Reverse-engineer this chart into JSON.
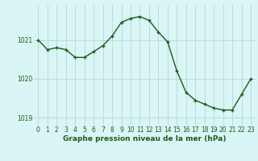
{
  "x": [
    0,
    1,
    2,
    3,
    4,
    5,
    6,
    7,
    8,
    9,
    10,
    11,
    12,
    13,
    14,
    15,
    16,
    17,
    18,
    19,
    20,
    21,
    22,
    23
  ],
  "y": [
    1021.0,
    1020.75,
    1020.8,
    1020.75,
    1020.55,
    1020.55,
    1020.7,
    1020.85,
    1021.1,
    1021.45,
    1021.55,
    1021.6,
    1021.5,
    1021.2,
    1020.95,
    1020.2,
    1019.65,
    1019.45,
    1019.35,
    1019.25,
    1019.2,
    1019.2,
    1019.6,
    1020.0
  ],
  "line_color": "#1a5c1a",
  "marker": "+",
  "marker_size": 3,
  "bg_color": "#d9f5f5",
  "grid_color": "#b0d0d0",
  "tick_color": "#1a5c1a",
  "xlabel": "Graphe pression niveau de la mer (hPa)",
  "xlim": [
    -0.5,
    23.5
  ],
  "ylim": [
    1018.8,
    1021.9
  ],
  "yticks": [
    1019,
    1020,
    1021
  ],
  "xticks": [
    0,
    1,
    2,
    3,
    4,
    5,
    6,
    7,
    8,
    9,
    10,
    11,
    12,
    13,
    14,
    15,
    16,
    17,
    18,
    19,
    20,
    21,
    22,
    23
  ],
  "xtick_labels": [
    "0",
    "1",
    "2",
    "3",
    "4",
    "5",
    "6",
    "7",
    "8",
    "9",
    "10",
    "11",
    "12",
    "13",
    "14",
    "15",
    "16",
    "17",
    "18",
    "19",
    "20",
    "21",
    "22",
    "23"
  ],
  "xlabel_fontsize": 6.5,
  "tick_fontsize": 5.5,
  "linewidth": 1.0
}
